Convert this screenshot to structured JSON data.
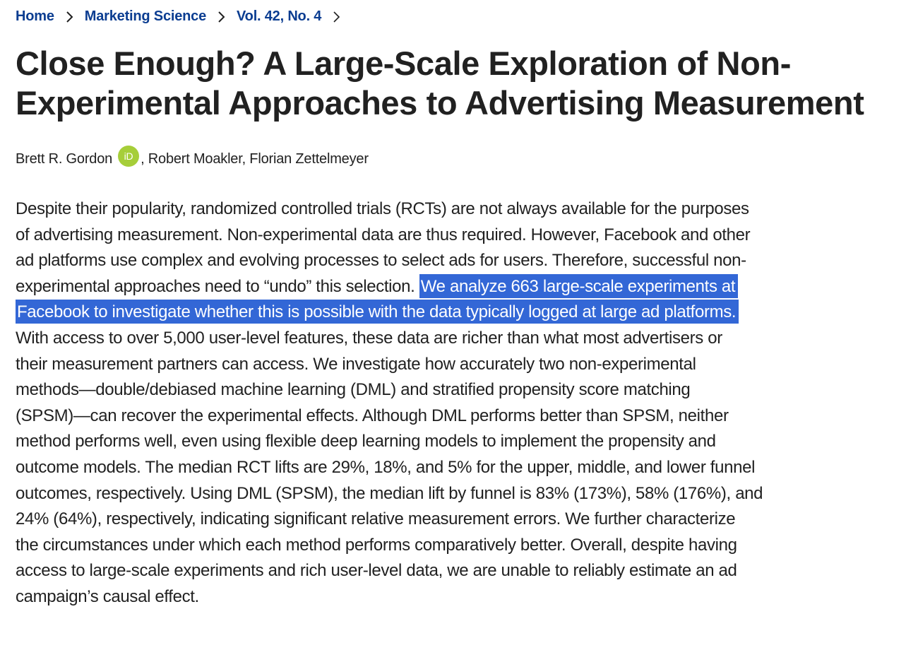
{
  "breadcrumb": {
    "items": [
      {
        "label": "Home"
      },
      {
        "label": "Marketing Science"
      },
      {
        "label": "Vol. 42, No. 4"
      }
    ],
    "link_color": "#0b3d91"
  },
  "article": {
    "title_lines": [
      "Close Enough? A Large-Scale Exploration of Non-",
      "Experimental Approaches to Advertising Measurement"
    ],
    "authors": {
      "first": "Brett R. Gordon",
      "orcid_label": "iD",
      "orcid_color": "#a6ce39",
      "rest": ", Robert Moakler, Florian Zettelmeyer"
    }
  },
  "abstract": {
    "highlight_color": "#3367d6",
    "lines": [
      {
        "text": "Despite their popularity, randomized controlled trials (RCTs) are not always available for the purposes"
      },
      {
        "text": "of advertising measurement. Non-experimental data are thus required. However, Facebook and other"
      },
      {
        "text": "ad platforms use complex and evolving processes to select ads for users. Therefore, successful non-"
      },
      {
        "text": "experimental approaches need to “undo” this selection. ",
        "highlight": "We analyze 663 large-scale experiments at"
      },
      {
        "text": "",
        "highlight": "Facebook to investigate whether this is possible with the data typically logged at large ad platforms."
      },
      {
        "text": "With access to over 5,000 user-level features, these data are richer than what most advertisers or"
      },
      {
        "text": "their measurement partners can access. We investigate how accurately two non-experimental"
      },
      {
        "text": "methods—double/debiased machine learning (DML) and stratified propensity score matching"
      },
      {
        "text": "(SPSM)—can recover the experimental effects. Although DML performs better than SPSM, neither"
      },
      {
        "text": "method performs well, even using flexible deep learning models to implement the propensity and"
      },
      {
        "text": "outcome models. The median RCT lifts are 29%, 18%, and 5% for the upper, middle, and lower funnel"
      },
      {
        "text": "outcomes, respectively. Using DML (SPSM), the median lift by funnel is 83% (173%), 58% (176%), and"
      },
      {
        "text": "24% (64%), respectively, indicating significant relative measurement errors. We further characterize"
      },
      {
        "text": "the circumstances under which each method performs comparatively better. Overall, despite having"
      },
      {
        "text": "access to large-scale experiments and rich user-level data, we are unable to reliably estimate an ad"
      },
      {
        "text": "campaign’s causal effect."
      }
    ]
  }
}
